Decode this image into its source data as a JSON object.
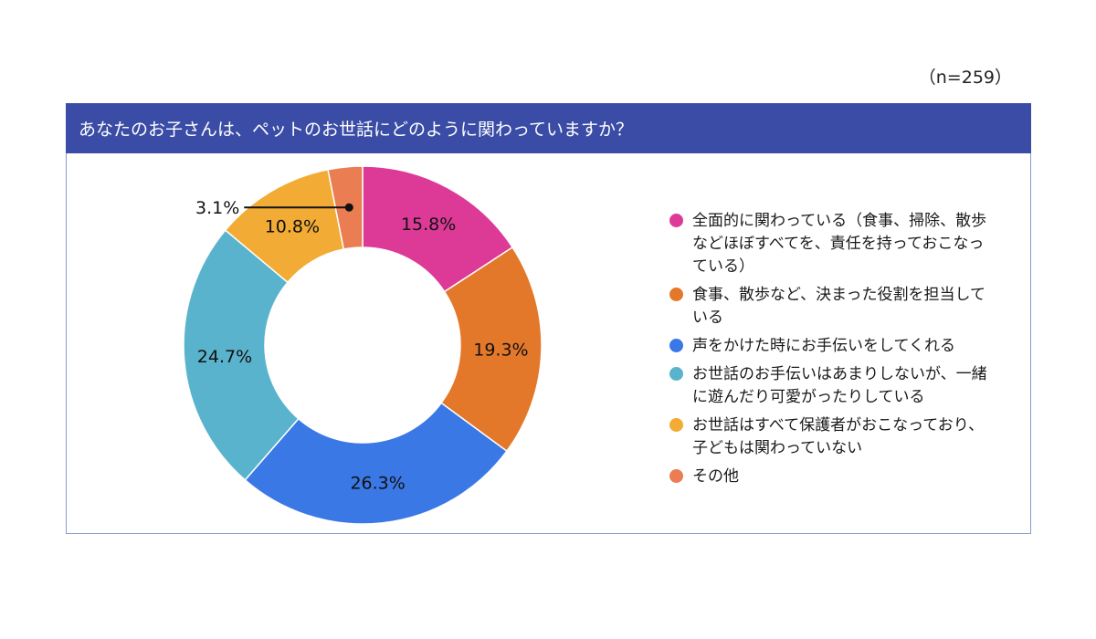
{
  "sample_size": "（n=259）",
  "header": {
    "title": "あなたのお子さんは、ペットのお世話にどのように関わっていますか？"
  },
  "chart_data": {
    "type": "pie",
    "donut": true,
    "title": "あなたのお子さんは、ペットのお世話にどのように関わっていますか？",
    "series": [
      {
        "name": "全面的に関わっている（食事、掃除、散歩などほぼすべてを、責任を持っておこなっている）",
        "value": 15.8,
        "label": "15.8%",
        "color": "#dd3a97"
      },
      {
        "name": "食事、散歩など、決まった役割を担当している",
        "value": 19.3,
        "label": "19.3%",
        "color": "#e4782a"
      },
      {
        "name": "声をかけた時にお手伝いをしてくれる",
        "value": 26.3,
        "label": "26.3%",
        "color": "#3a78e6"
      },
      {
        "name": "お世話のお手伝いはあまりしないが、一緒に遊んだり可愛がったりしている",
        "value": 24.7,
        "label": "24.7%",
        "color": "#5ab3cc"
      },
      {
        "name": "お世話はすべて保護者がおこなっており、子どもは関わっていない",
        "value": 10.8,
        "label": "10.8%",
        "color": "#f2ab34"
      },
      {
        "name": "その他",
        "value": 3.1,
        "label": "3.1%",
        "color": "#ea7d52"
      }
    ],
    "legend_position": "right"
  }
}
